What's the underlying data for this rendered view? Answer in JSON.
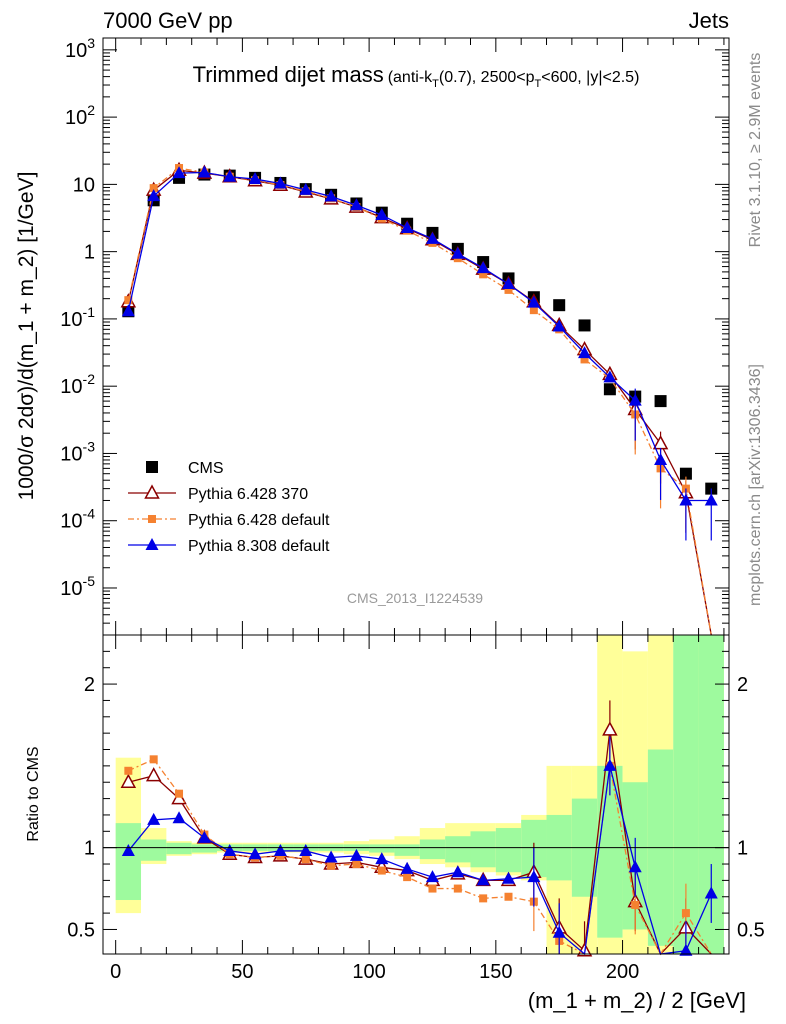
{
  "header": {
    "left": "7000 GeV pp",
    "right": "Jets"
  },
  "title": {
    "main": "Trimmed dijet mass",
    "cuts_a": "(anti-k",
    "cuts_sub1": "T",
    "cuts_b": "(0.7), 2500<p",
    "cuts_sub2": "T",
    "cuts_c": "<600, |y|<2.5)"
  },
  "side": {
    "rivet": "Rivet 3.1.10, ≥ 2.9M events",
    "mcplots": "mcplots.cern.ch [arXiv:1306.3436]"
  },
  "watermark": "CMS_2013_I1224539",
  "axes": {
    "ylabel_main": "1000/σ 2dσ)/d(m_1 + m_2) [1/GeV]",
    "ylabel_ratio": "Ratio to CMS",
    "xlabel": "(m_1 + m_2) / 2 [GeV]"
  },
  "colors": {
    "data": "#000000",
    "p6_370": "#8b0000",
    "p6_default": "#f58130",
    "p8_default": "#0000e6",
    "band_inner": "#9efa9e",
    "band_outer": "#ffff99"
  },
  "chart_data": [
    {
      "type": "scatter",
      "panel": "main",
      "yscale": "log",
      "xlim": [
        -5,
        242
      ],
      "ylim": [
        2e-06,
        1500
      ],
      "x_ticks": [
        0,
        50,
        100,
        150,
        200
      ],
      "y_ticks": [
        {
          "value": 1e-05,
          "base": "10",
          "exp": "-5"
        },
        {
          "value": 0.0001,
          "base": "10",
          "exp": "-4"
        },
        {
          "value": 0.001,
          "base": "10",
          "exp": "-3"
        },
        {
          "value": 0.01,
          "base": "10",
          "exp": "-2"
        },
        {
          "value": 0.1,
          "base": "10",
          "exp": "-1"
        },
        {
          "value": 1,
          "base": "1",
          "exp": ""
        },
        {
          "value": 10,
          "base": "10",
          "exp": ""
        },
        {
          "value": 100,
          "base": "10",
          "exp": "2"
        },
        {
          "value": 1000,
          "base": "10",
          "exp": "3"
        }
      ],
      "x": [
        5,
        15,
        25,
        35,
        45,
        55,
        65,
        75,
        85,
        95,
        105,
        115,
        125,
        135,
        145,
        155,
        165,
        175,
        185,
        195,
        205,
        215,
        225,
        235
      ],
      "series": [
        {
          "name": "CMS",
          "key": "data",
          "marker": "square",
          "values": [
            0.13,
            5.8,
            12.5,
            14,
            13.5,
            12.5,
            10.5,
            8.5,
            7,
            5.2,
            3.8,
            2.6,
            1.9,
            1.1,
            0.7,
            0.4,
            0.21,
            0.16,
            0.08,
            0.009,
            0.007,
            0.006,
            0.0005,
            0.0003
          ]
        },
        {
          "name": "Pythia 6.428 370",
          "key": "p6_370",
          "marker": "triangle-open",
          "values": [
            0.18,
            8.2,
            16.2,
            14.7,
            13.0,
            11.3,
            9.7,
            7.7,
            6.1,
            4.6,
            3.2,
            2.2,
            1.5,
            0.91,
            0.55,
            0.33,
            0.18,
            0.08,
            0.035,
            0.015,
            0.0045,
            0.0014,
            0.00026,
            0.0
          ]
        },
        {
          "name": "Pythia 6.428 default",
          "key": "p6_default",
          "marker": "square-small",
          "values": [
            0.19,
            8.8,
            17.5,
            15.0,
            13.0,
            11.5,
            9.8,
            7.9,
            6.2,
            4.6,
            3.1,
            2.05,
            1.35,
            0.8,
            0.46,
            0.27,
            0.135,
            0.07,
            0.025,
            0.013,
            0.0038,
            0.0006,
            0.0003,
            0.0
          ]
        },
        {
          "name": "Pythia 8.308 default",
          "key": "p8_default",
          "marker": "triangle",
          "values": [
            0.13,
            6.7,
            14.7,
            15.0,
            13.0,
            12.0,
            10.3,
            8.3,
            6.6,
            4.9,
            3.5,
            2.25,
            1.55,
            0.93,
            0.57,
            0.33,
            0.175,
            0.077,
            0.031,
            0.0135,
            0.0061,
            0.0008,
            0.0002,
            0.0002
          ]
        }
      ],
      "legend": "left"
    },
    {
      "type": "line",
      "panel": "ratio",
      "xlim": [
        -5,
        242
      ],
      "ylim": [
        0.35,
        2.3
      ],
      "y_ticks": [
        0.5,
        1,
        2
      ],
      "x": [
        5,
        15,
        25,
        35,
        45,
        55,
        65,
        75,
        85,
        95,
        105,
        115,
        125,
        135,
        145,
        155,
        165,
        175,
        185,
        195,
        205,
        215,
        225,
        235
      ],
      "band_inner": [
        [
          0.68,
          1.15
        ],
        [
          0.92,
          1.05
        ],
        [
          0.96,
          1.03
        ],
        [
          0.97,
          1.02
        ],
        [
          0.98,
          1.02
        ],
        [
          0.98,
          1.02
        ],
        [
          0.98,
          1.02
        ],
        [
          0.98,
          1.02
        ],
        [
          0.98,
          1.02
        ],
        [
          0.98,
          1.02
        ],
        [
          0.97,
          1.02
        ],
        [
          0.95,
          1.02
        ],
        [
          0.93,
          1.05
        ],
        [
          0.91,
          1.07
        ],
        [
          0.88,
          1.1
        ],
        [
          0.85,
          1.12
        ],
        [
          0.82,
          1.17
        ],
        [
          0.8,
          1.2
        ],
        [
          0.7,
          1.3
        ],
        [
          0.45,
          1.5
        ],
        [
          0.5,
          1.4
        ],
        [
          0.4,
          1.6
        ],
        [
          0.0,
          2.5
        ],
        [
          0.0,
          2.5
        ]
      ],
      "band_outer": [
        [
          0.6,
          1.55
        ],
        [
          0.9,
          1.12
        ],
        [
          0.95,
          1.04
        ],
        [
          0.96,
          1.03
        ],
        [
          0.97,
          1.03
        ],
        [
          0.97,
          1.03
        ],
        [
          0.97,
          1.03
        ],
        [
          0.97,
          1.03
        ],
        [
          0.97,
          1.03
        ],
        [
          0.96,
          1.04
        ],
        [
          0.95,
          1.05
        ],
        [
          0.93,
          1.07
        ],
        [
          0.9,
          1.12
        ],
        [
          0.88,
          1.15
        ],
        [
          0.85,
          1.15
        ],
        [
          0.83,
          1.15
        ],
        [
          0.8,
          1.2
        ],
        [
          0.3,
          1.5
        ],
        [
          0.3,
          1.5
        ],
        [
          0.2,
          2.5
        ],
        [
          0.3,
          2.2
        ],
        [
          0.2,
          2.5
        ],
        [
          0.0,
          2.5
        ],
        [
          0.0,
          2.5
        ]
      ],
      "series": [
        {
          "name": "Pythia 6.428 370",
          "key": "p6_370",
          "marker": "triangle-open",
          "values": [
            1.4,
            1.44,
            1.3,
            1.06,
            0.96,
            0.94,
            0.95,
            0.93,
            0.9,
            0.91,
            0.88,
            0.86,
            0.8,
            0.84,
            0.8,
            0.8,
            0.85,
            0.51,
            0.37,
            1.72,
            0.67,
            null,
            0.51,
            null
          ]
        },
        {
          "name": "Pythia 6.428 default",
          "key": "p6_default",
          "marker": "square-small",
          "values": [
            1.47,
            1.54,
            1.33,
            1.08,
            0.96,
            0.94,
            0.95,
            0.93,
            0.89,
            0.9,
            0.86,
            0.82,
            0.75,
            0.75,
            0.69,
            0.7,
            0.67,
            0.43,
            null,
            1.5,
            0.65,
            null,
            0.6,
            null
          ]
        },
        {
          "name": "Pythia 8.308 default",
          "key": "p8_default",
          "marker": "triangle",
          "values": [
            0.98,
            1.17,
            1.18,
            1.06,
            0.98,
            0.96,
            0.98,
            0.98,
            0.94,
            0.95,
            0.93,
            0.87,
            0.82,
            0.85,
            0.8,
            0.81,
            0.82,
            0.48,
            null,
            1.5,
            0.88,
            null,
            0.37,
            0.72
          ]
        }
      ]
    }
  ]
}
